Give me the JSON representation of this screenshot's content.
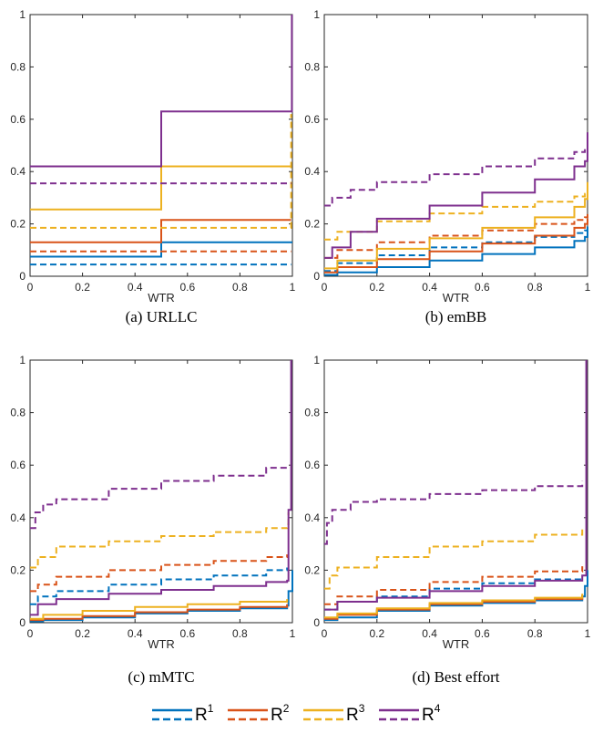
{
  "colors": {
    "R1": "#0072BD",
    "R2": "#D95319",
    "R3": "#EDB120",
    "R4": "#7E2F8E",
    "axis": "#262626"
  },
  "legend": {
    "placement": "bottom-center",
    "items": [
      {
        "base": "R",
        "sup": "1",
        "color_key": "R1"
      },
      {
        "base": "R",
        "sup": "2",
        "color_key": "R2"
      },
      {
        "base": "R",
        "sup": "3",
        "color_key": "R3"
      },
      {
        "base": "R",
        "sup": "4",
        "color_key": "R4"
      }
    ]
  },
  "chart_data": [
    {
      "type": "line",
      "caption": "(a) URLLC",
      "xlabel": "WTR",
      "ylabel": "",
      "xlim": [
        0,
        1
      ],
      "ylim": [
        0,
        1
      ],
      "xticks": [
        "0",
        "0.2",
        "0.4",
        "0.6",
        "0.8",
        "1"
      ],
      "yticks": [
        "0",
        "0.2",
        "0.4",
        "0.6",
        "0.8",
        "1"
      ],
      "step": true,
      "series": [
        {
          "color_key": "R1",
          "dash": false,
          "x": [
            0,
            0.5,
            0.5,
            0.995,
            0.995,
            1
          ],
          "y": [
            0.075,
            0.075,
            0.13,
            0.13,
            0.13,
            0.13
          ]
        },
        {
          "color_key": "R1",
          "dash": true,
          "x": [
            0,
            0.995
          ],
          "y": [
            0.045,
            0.045
          ]
        },
        {
          "color_key": "R2",
          "dash": false,
          "x": [
            0,
            0.5,
            0.5,
            0.995
          ],
          "y": [
            0.13,
            0.13,
            0.215,
            0.215
          ]
        },
        {
          "color_key": "R2",
          "dash": true,
          "x": [
            0,
            0.995
          ],
          "y": [
            0.095,
            0.095
          ]
        },
        {
          "color_key": "R3",
          "dash": false,
          "x": [
            0,
            0.5,
            0.5,
            0.995
          ],
          "y": [
            0.255,
            0.255,
            0.42,
            0.42
          ]
        },
        {
          "color_key": "R3",
          "dash": true,
          "x": [
            0,
            0.995,
            0.995
          ],
          "y": [
            0.185,
            0.185,
            0.62
          ]
        },
        {
          "color_key": "R4",
          "dash": false,
          "x": [
            0,
            0.5,
            0.5,
            0.998,
            0.998
          ],
          "y": [
            0.42,
            0.42,
            0.63,
            0.63,
            1.0
          ]
        },
        {
          "color_key": "R4",
          "dash": true,
          "x": [
            0,
            0.995
          ],
          "y": [
            0.355,
            0.355
          ]
        }
      ]
    },
    {
      "type": "line",
      "caption": "(b) emBB",
      "xlabel": "WTR",
      "ylabel": "",
      "xlim": [
        0,
        1
      ],
      "ylim": [
        0,
        1
      ],
      "xticks": [
        "0",
        "0.2",
        "0.4",
        "0.6",
        "0.8",
        "1"
      ],
      "yticks": [
        "0",
        "0.2",
        "0.4",
        "0.6",
        "0.8",
        "1"
      ],
      "step": true,
      "series": [
        {
          "color_key": "R1",
          "dash": false,
          "x": [
            0,
            0.05,
            0.2,
            0.4,
            0.6,
            0.8,
            0.95,
            0.99,
            1.0
          ],
          "y": [
            0.005,
            0.015,
            0.035,
            0.06,
            0.085,
            0.11,
            0.135,
            0.15,
            0.19
          ]
        },
        {
          "color_key": "R1",
          "dash": true,
          "x": [
            0,
            0.05,
            0.2,
            0.4,
            0.6,
            0.8,
            0.95,
            0.99,
            1.0
          ],
          "y": [
            0.02,
            0.05,
            0.08,
            0.11,
            0.13,
            0.15,
            0.165,
            0.175,
            0.2
          ]
        },
        {
          "color_key": "R2",
          "dash": false,
          "x": [
            0,
            0.05,
            0.2,
            0.4,
            0.6,
            0.8,
            0.95,
            0.99,
            1.0
          ],
          "y": [
            0.015,
            0.035,
            0.065,
            0.095,
            0.125,
            0.155,
            0.185,
            0.2,
            0.22
          ]
        },
        {
          "color_key": "R2",
          "dash": true,
          "x": [
            0,
            0.05,
            0.2,
            0.4,
            0.6,
            0.8,
            0.95,
            0.99,
            1.0
          ],
          "y": [
            0.07,
            0.1,
            0.13,
            0.155,
            0.175,
            0.2,
            0.215,
            0.225,
            0.25
          ]
        },
        {
          "color_key": "R3",
          "dash": false,
          "x": [
            0,
            0.05,
            0.2,
            0.4,
            0.6,
            0.8,
            0.95,
            0.99,
            1.0
          ],
          "y": [
            0.03,
            0.06,
            0.105,
            0.145,
            0.185,
            0.225,
            0.265,
            0.295,
            0.36
          ]
        },
        {
          "color_key": "R3",
          "dash": true,
          "x": [
            0,
            0.05,
            0.2,
            0.4,
            0.6,
            0.8,
            0.95,
            0.99,
            1.0
          ],
          "y": [
            0.14,
            0.17,
            0.21,
            0.24,
            0.265,
            0.285,
            0.305,
            0.315,
            0.33
          ]
        },
        {
          "color_key": "R4",
          "dash": false,
          "x": [
            0,
            0.03,
            0.1,
            0.2,
            0.4,
            0.6,
            0.8,
            0.95,
            0.99,
            1.0
          ],
          "y": [
            0.07,
            0.11,
            0.17,
            0.22,
            0.27,
            0.32,
            0.37,
            0.42,
            0.44,
            0.55
          ]
        },
        {
          "color_key": "R4",
          "dash": true,
          "x": [
            0,
            0.03,
            0.1,
            0.2,
            0.4,
            0.6,
            0.8,
            0.95,
            0.99,
            1.0
          ],
          "y": [
            0.27,
            0.3,
            0.33,
            0.36,
            0.39,
            0.42,
            0.45,
            0.475,
            0.49,
            0.51
          ]
        }
      ]
    },
    {
      "type": "line",
      "caption": "(c) mMTC",
      "xlabel": "WTR",
      "ylabel": "",
      "xlim": [
        0,
        1
      ],
      "ylim": [
        0,
        1
      ],
      "xticks": [
        "0",
        "0.2",
        "0.4",
        "0.6",
        "0.8",
        "1"
      ],
      "yticks": [
        "0",
        "0.2",
        "0.4",
        "0.6",
        "0.8",
        "1"
      ],
      "step": true,
      "series": [
        {
          "color_key": "R1",
          "dash": false,
          "x": [
            0,
            0.05,
            0.2,
            0.4,
            0.6,
            0.8,
            0.98,
            0.985,
            1.0
          ],
          "y": [
            0.005,
            0.01,
            0.02,
            0.035,
            0.045,
            0.055,
            0.065,
            0.12,
            0.2
          ]
        },
        {
          "color_key": "R1",
          "dash": true,
          "x": [
            0,
            0.03,
            0.1,
            0.3,
            0.5,
            0.7,
            0.9,
            0.98
          ],
          "y": [
            0.07,
            0.1,
            0.12,
            0.145,
            0.165,
            0.18,
            0.2,
            0.21
          ]
        },
        {
          "color_key": "R2",
          "dash": false,
          "x": [
            0,
            0.05,
            0.2,
            0.4,
            0.6,
            0.8,
            0.98
          ],
          "y": [
            0.01,
            0.015,
            0.025,
            0.04,
            0.05,
            0.06,
            0.07
          ]
        },
        {
          "color_key": "R2",
          "dash": true,
          "x": [
            0,
            0.03,
            0.1,
            0.3,
            0.5,
            0.7,
            0.9,
            0.98
          ],
          "y": [
            0.12,
            0.145,
            0.175,
            0.2,
            0.22,
            0.235,
            0.25,
            0.26
          ]
        },
        {
          "color_key": "R3",
          "dash": false,
          "x": [
            0,
            0.05,
            0.2,
            0.4,
            0.6,
            0.8,
            0.98
          ],
          "y": [
            0.015,
            0.03,
            0.045,
            0.06,
            0.07,
            0.08,
            0.09
          ]
        },
        {
          "color_key": "R3",
          "dash": true,
          "x": [
            0,
            0.03,
            0.1,
            0.3,
            0.5,
            0.7,
            0.9,
            0.98,
            0.985
          ],
          "y": [
            0.21,
            0.25,
            0.29,
            0.31,
            0.33,
            0.345,
            0.36,
            0.375,
            0.42
          ]
        },
        {
          "color_key": "R4",
          "dash": false,
          "x": [
            0,
            0.03,
            0.1,
            0.3,
            0.5,
            0.7,
            0.9,
            0.98,
            0.985,
            0.995,
            0.995
          ],
          "y": [
            0.03,
            0.07,
            0.09,
            0.11,
            0.125,
            0.14,
            0.155,
            0.16,
            0.43,
            0.43,
            1.0
          ]
        },
        {
          "color_key": "R4",
          "dash": true,
          "x": [
            0,
            0.02,
            0.05,
            0.1,
            0.3,
            0.5,
            0.7,
            0.9,
            0.98
          ],
          "y": [
            0.36,
            0.42,
            0.45,
            0.47,
            0.51,
            0.54,
            0.56,
            0.59,
            0.6
          ]
        }
      ]
    },
    {
      "type": "line",
      "caption": "(d) Best effort",
      "xlabel": "WTR",
      "ylabel": "",
      "xlim": [
        0,
        1
      ],
      "ylim": [
        0,
        1
      ],
      "xticks": [
        "0",
        "0.2",
        "0.4",
        "0.6",
        "0.8",
        "1"
      ],
      "yticks": [
        "0",
        "0.2",
        "0.4",
        "0.6",
        "0.8",
        "1"
      ],
      "step": true,
      "series": [
        {
          "color_key": "R1",
          "dash": false,
          "x": [
            0,
            0.05,
            0.2,
            0.4,
            0.6,
            0.8,
            0.98,
            0.99,
            1.0
          ],
          "y": [
            0.01,
            0.02,
            0.045,
            0.065,
            0.075,
            0.085,
            0.1,
            0.14,
            0.2
          ]
        },
        {
          "color_key": "R1",
          "dash": true,
          "x": [
            0,
            0.05,
            0.2,
            0.4,
            0.6,
            0.8,
            0.98
          ],
          "y": [
            0.05,
            0.08,
            0.1,
            0.13,
            0.15,
            0.165,
            0.175
          ]
        },
        {
          "color_key": "R2",
          "dash": false,
          "x": [
            0,
            0.05,
            0.2,
            0.4,
            0.6,
            0.8,
            0.98
          ],
          "y": [
            0.015,
            0.03,
            0.05,
            0.07,
            0.08,
            0.09,
            0.105
          ]
        },
        {
          "color_key": "R2",
          "dash": true,
          "x": [
            0,
            0.05,
            0.2,
            0.4,
            0.6,
            0.8,
            0.98
          ],
          "y": [
            0.07,
            0.1,
            0.125,
            0.155,
            0.175,
            0.195,
            0.215
          ]
        },
        {
          "color_key": "R3",
          "dash": false,
          "x": [
            0,
            0.05,
            0.2,
            0.4,
            0.6,
            0.8,
            0.98
          ],
          "y": [
            0.02,
            0.035,
            0.055,
            0.075,
            0.085,
            0.095,
            0.11
          ]
        },
        {
          "color_key": "R3",
          "dash": true,
          "x": [
            0,
            0.02,
            0.05,
            0.2,
            0.4,
            0.6,
            0.8,
            0.98
          ],
          "y": [
            0.13,
            0.18,
            0.21,
            0.25,
            0.29,
            0.31,
            0.335,
            0.36
          ]
        },
        {
          "color_key": "R4",
          "dash": false,
          "x": [
            0,
            0.05,
            0.2,
            0.4,
            0.6,
            0.8,
            0.98,
            0.995,
            0.995
          ],
          "y": [
            0.05,
            0.08,
            0.095,
            0.12,
            0.14,
            0.16,
            0.18,
            0.18,
            1.0
          ]
        },
        {
          "color_key": "R4",
          "dash": true,
          "x": [
            0,
            0.01,
            0.03,
            0.1,
            0.2,
            0.4,
            0.6,
            0.8,
            0.98
          ],
          "y": [
            0.3,
            0.38,
            0.43,
            0.46,
            0.47,
            0.49,
            0.505,
            0.52,
            0.54
          ]
        }
      ]
    }
  ]
}
